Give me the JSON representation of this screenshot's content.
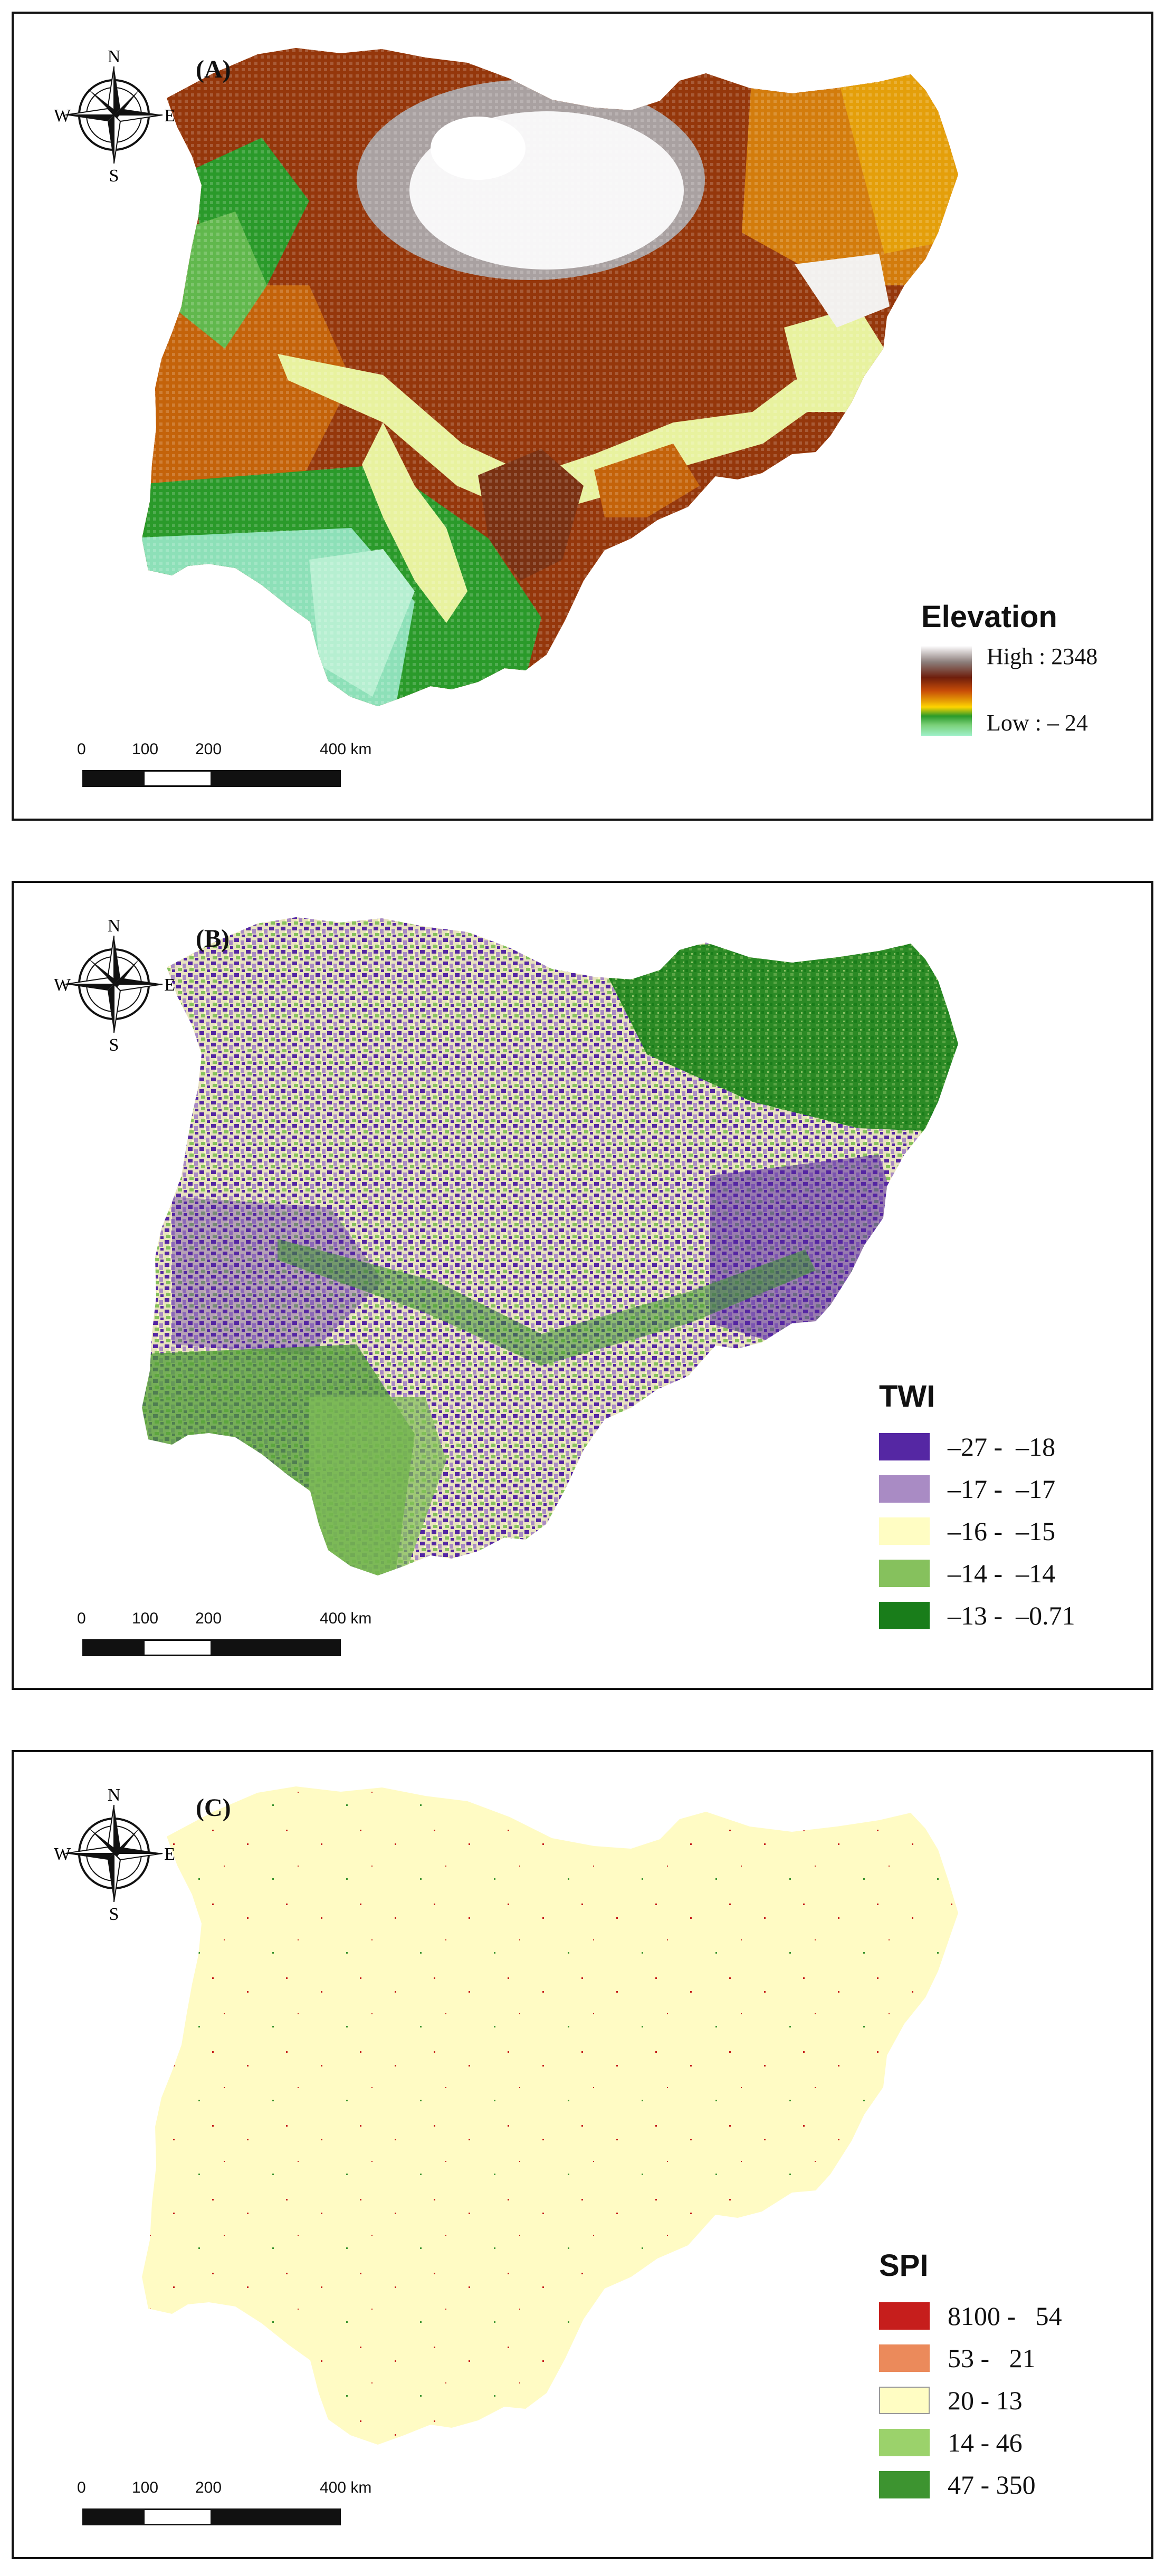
{
  "figure": {
    "compass": {
      "n": "N",
      "s": "S",
      "e": "E",
      "w": "W",
      "icon": "compass-rose-icon"
    },
    "scalebar": {
      "labels": [
        "0",
        "100",
        "200",
        "400 km"
      ]
    },
    "panels": [
      {
        "id": "A",
        "label": "(A)",
        "legend_title": "Elevation",
        "ramp_high": "High : 2348",
        "ramp_low": "Low : – 24",
        "colors": [
          "#fdfcfd",
          "#6e1e0c",
          "#c84d08",
          "#e9a405",
          "#2a9a2a",
          "#9ff0c9"
        ]
      },
      {
        "id": "B",
        "label": "(B)",
        "legend_title": "TWI",
        "classes": [
          {
            "label": "–27 -  –18",
            "color": "#5527a3"
          },
          {
            "label": "–17 -  –17",
            "color": "#a98bc4"
          },
          {
            "label": "–16 -  –15",
            "color": "#fffdc3"
          },
          {
            "label": "–14 -  –14",
            "color": "#86c15d"
          },
          {
            "label": "–13 -  –0.71",
            "color": "#197d1a"
          }
        ]
      },
      {
        "id": "C",
        "label": "(C)",
        "legend_title": "SPI",
        "classes": [
          {
            "label": "8100 -   54",
            "color": "#c61e1c"
          },
          {
            "label": "53 -   21",
            "color": "#eb8a5b"
          },
          {
            "label": "20 - 13",
            "color": "#fffdc3"
          },
          {
            "label": "14 - 46",
            "color": "#9bd26b"
          },
          {
            "label": "47 - 350",
            "color": "#3d9430"
          }
        ]
      }
    ]
  }
}
